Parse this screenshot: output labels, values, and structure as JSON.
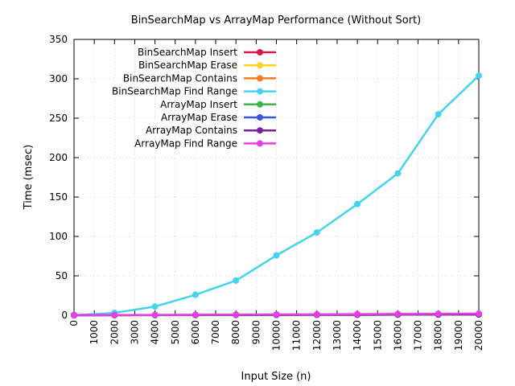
{
  "chart_data": {
    "type": "line",
    "title": "BinSearchMap vs ArrayMap Performance (Without Sort)",
    "xlabel": "Input Size (n)",
    "ylabel": "Time (msec)",
    "xlim": [
      0,
      20000
    ],
    "ylim": [
      0,
      350
    ],
    "x_ticks": [
      0,
      1000,
      2000,
      3000,
      4000,
      5000,
      6000,
      7000,
      8000,
      9000,
      10000,
      11000,
      12000,
      13000,
      14000,
      15000,
      16000,
      17000,
      18000,
      19000,
      20000
    ],
    "y_ticks": [
      0,
      50,
      100,
      150,
      200,
      250,
      300,
      350
    ],
    "grid": true,
    "legend_position": "top-left",
    "x": [
      0,
      2000,
      4000,
      6000,
      8000,
      10000,
      12000,
      14000,
      16000,
      18000,
      20000
    ],
    "series": [
      {
        "name": "BinSearchMap Insert",
        "color": "#e0184a",
        "values": [
          0,
          0.1,
          0.2,
          0.3,
          0.4,
          0.5,
          0.6,
          0.7,
          0.8,
          0.9,
          1.0
        ]
      },
      {
        "name": "BinSearchMap Erase",
        "color": "#ffd21e",
        "values": [
          0,
          0.1,
          0.2,
          0.3,
          0.4,
          0.5,
          0.6,
          0.7,
          0.8,
          0.9,
          1.0
        ]
      },
      {
        "name": "BinSearchMap Contains",
        "color": "#f47c20",
        "values": [
          0,
          0.1,
          0.2,
          0.3,
          0.4,
          0.5,
          0.6,
          0.7,
          0.8,
          0.9,
          1.0
        ]
      },
      {
        "name": "BinSearchMap Find Range",
        "color": "#43d3ef",
        "values": [
          0,
          3,
          11,
          26,
          44,
          76,
          105,
          141,
          180,
          255,
          304
        ]
      },
      {
        "name": "ArrayMap Insert",
        "color": "#3cb44b",
        "values": [
          0,
          0.1,
          0.2,
          0.3,
          0.4,
          0.5,
          0.6,
          0.7,
          0.8,
          0.9,
          1.0
        ]
      },
      {
        "name": "ArrayMap Erase",
        "color": "#3a55d6",
        "values": [
          0,
          0.1,
          0.2,
          0.3,
          0.4,
          0.5,
          0.6,
          0.7,
          0.8,
          0.9,
          1.0
        ]
      },
      {
        "name": "ArrayMap Contains",
        "color": "#7b1fa2",
        "values": [
          0,
          0.1,
          0.2,
          0.3,
          0.4,
          0.5,
          0.6,
          0.7,
          0.8,
          0.9,
          1.0
        ]
      },
      {
        "name": "ArrayMap Find Range",
        "color": "#e63ee6",
        "values": [
          0,
          0.2,
          0.4,
          0.6,
          0.8,
          1.0,
          1.2,
          1.4,
          1.6,
          1.8,
          2.0
        ]
      }
    ]
  }
}
